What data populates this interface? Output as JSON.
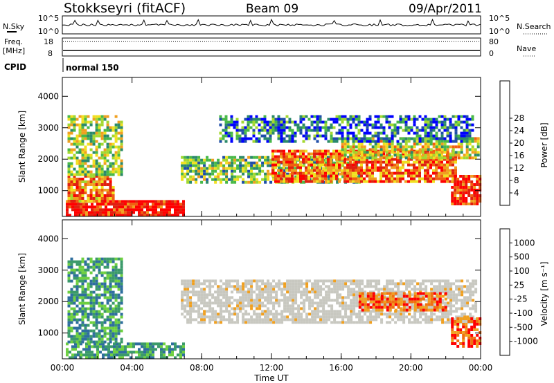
{
  "header": {
    "station": "Stokkseyri (fitACF)",
    "beam": "Beam 09",
    "date": "09/Apr/2011"
  },
  "noise_panel": {
    "left_label": "N.Sky",
    "right_label": "N.Search",
    "ticks_left": [
      "10^5",
      "10^0"
    ],
    "ticks_right": [
      "10^5",
      "10^0"
    ]
  },
  "freq_panel": {
    "left_label_1": "Freq.",
    "left_label_2": "[MHz]",
    "right_label": "Nave",
    "ticks_left": [
      "18",
      "8"
    ],
    "ticks_right": [
      "80",
      "0"
    ]
  },
  "cpid": {
    "label": "CPID",
    "value": "normal 150"
  },
  "chart_data": [
    {
      "type": "heatmap",
      "name": "power",
      "ylabel": "Slant Range [km]",
      "xlabel": "Time UT",
      "ylim": [
        180,
        4600
      ],
      "yticks": [
        "1000",
        "2000",
        "3000",
        "4000"
      ],
      "xticks": [
        "00:00",
        "04:00",
        "08:00",
        "12:00",
        "16:00",
        "20:00",
        "00:00"
      ],
      "colorbar": {
        "label": "Power [dB]",
        "ticks": [
          "4",
          "8",
          "12",
          "16",
          "20",
          "24",
          "28"
        ],
        "colors": [
          "#0000ff",
          "#1f4ea8",
          "#2b8a6a",
          "#48b848",
          "#a4d830",
          "#f0e020",
          "#f0a020",
          "#f06010",
          "#e02010",
          "#ff0000"
        ]
      },
      "regions": [
        {
          "t": [
            0.2,
            7.0
          ],
          "r": [
            200,
            700
          ],
          "level": 0.92
        },
        {
          "t": [
            0.3,
            3.0
          ],
          "r": [
            700,
            1500
          ],
          "level": 0.7
        },
        {
          "t": [
            0.3,
            3.4
          ],
          "r": [
            1500,
            3400
          ],
          "level": 0.45
        },
        {
          "t": [
            6.8,
            17.0
          ],
          "r": [
            1300,
            2100
          ],
          "level": 0.4
        },
        {
          "t": [
            12.0,
            22.5
          ],
          "r": [
            1300,
            2300
          ],
          "level": 0.75
        },
        {
          "t": [
            16.0,
            23.8
          ],
          "r": [
            2000,
            2700
          ],
          "level": 0.5
        },
        {
          "t": [
            22.3,
            24.0
          ],
          "r": [
            600,
            1500
          ],
          "level": 0.85
        },
        {
          "t": [
            9.0,
            23.5
          ],
          "r": [
            2600,
            3400
          ],
          "level": 0.2
        }
      ]
    },
    {
      "type": "heatmap",
      "name": "velocity",
      "ylabel": "Slant Range [km]",
      "xlabel": "Time UT",
      "ylim": [
        180,
        4600
      ],
      "yticks": [
        "1000",
        "2000",
        "3000",
        "4000"
      ],
      "xticks": [
        "00:00",
        "04:00",
        "08:00",
        "12:00",
        "16:00",
        "20:00",
        "00:00"
      ],
      "colorbar": {
        "label": "Velocity [m s⁻¹]",
        "ticks": [
          "1000",
          "500",
          "100",
          "25",
          "-25",
          "-100",
          "-500",
          "-1000"
        ],
        "colors": [
          "#1030b0",
          "#2e6e9e",
          "#3b9a6a",
          "#6ed040",
          "#c8c8c0",
          "#c8c8c0",
          "#f0a020",
          "#f07010",
          "#ff0000"
        ]
      },
      "regions": [
        {
          "t": [
            0.2,
            7.0
          ],
          "r": [
            200,
            700
          ],
          "vel": "positive"
        },
        {
          "t": [
            0.3,
            3.4
          ],
          "r": [
            700,
            3400
          ],
          "vel": "positive"
        },
        {
          "t": [
            6.8,
            23.8
          ],
          "r": [
            1300,
            2700
          ],
          "vel": "near-zero"
        },
        {
          "t": [
            17.0,
            22.0
          ],
          "r": [
            1700,
            2300
          ],
          "vel": "negative"
        },
        {
          "t": [
            22.3,
            24.0
          ],
          "r": [
            600,
            1500
          ],
          "vel": "negative"
        }
      ]
    }
  ]
}
